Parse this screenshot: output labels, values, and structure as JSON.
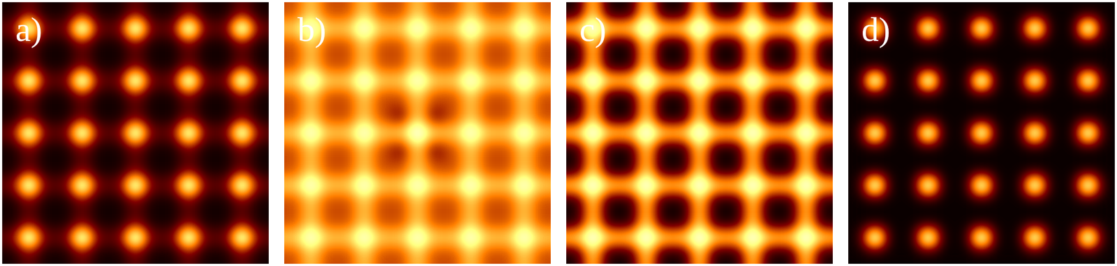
{
  "chart_data": [
    {
      "type": "heatmap",
      "title": "a)",
      "cells": [
        [
          4,
          20,
          4,
          4,
          20,
          4,
          4,
          20,
          4,
          4,
          20,
          4,
          4,
          20,
          4
        ],
        [
          20,
          100,
          20,
          20,
          100,
          20,
          20,
          100,
          20,
          20,
          100,
          20,
          20,
          100,
          20
        ],
        [
          4,
          20,
          4,
          4,
          20,
          4,
          4,
          20,
          4,
          4,
          20,
          4,
          4,
          20,
          4
        ],
        [
          4,
          20,
          4,
          4,
          20,
          4,
          4,
          20,
          4,
          4,
          20,
          4,
          4,
          20,
          4
        ],
        [
          20,
          100,
          20,
          20,
          100,
          20,
          20,
          100,
          20,
          20,
          100,
          20,
          20,
          100,
          20
        ],
        [
          4,
          20,
          4,
          4,
          20,
          4,
          4,
          20,
          4,
          4,
          20,
          4,
          4,
          20,
          4
        ],
        [
          4,
          20,
          4,
          4,
          20,
          4,
          4,
          20,
          4,
          4,
          20,
          4,
          4,
          20,
          4
        ],
        [
          20,
          100,
          20,
          20,
          100,
          20,
          20,
          100,
          20,
          20,
          100,
          20,
          20,
          100,
          20
        ],
        [
          4,
          20,
          4,
          4,
          20,
          4,
          4,
          20,
          4,
          4,
          20,
          4,
          4,
          20,
          4
        ],
        [
          4,
          20,
          4,
          4,
          20,
          4,
          4,
          20,
          4,
          4,
          20,
          4,
          4,
          20,
          4
        ],
        [
          20,
          100,
          20,
          20,
          100,
          20,
          20,
          100,
          20,
          20,
          100,
          20,
          20,
          100,
          20
        ],
        [
          4,
          20,
          4,
          4,
          20,
          4,
          4,
          20,
          4,
          4,
          20,
          4,
          4,
          20,
          4
        ],
        [
          4,
          20,
          4,
          4,
          20,
          4,
          4,
          20,
          4,
          4,
          20,
          4,
          4,
          20,
          4
        ],
        [
          20,
          100,
          20,
          20,
          100,
          20,
          20,
          100,
          20,
          20,
          100,
          20,
          20,
          100,
          20
        ],
        [
          4,
          20,
          4,
          4,
          20,
          4,
          4,
          20,
          4,
          4,
          20,
          4,
          4,
          20,
          4
        ]
      ]
    },
    {
      "type": "heatmap",
      "title": "b)",
      "cells": [
        [
          40,
          65,
          40,
          40,
          65,
          40,
          40,
          65,
          40,
          40,
          65,
          40,
          40,
          65,
          40
        ],
        [
          65,
          95,
          65,
          65,
          95,
          65,
          65,
          95,
          65,
          65,
          95,
          65,
          65,
          95,
          65
        ],
        [
          40,
          65,
          40,
          40,
          65,
          40,
          40,
          65,
          40,
          40,
          65,
          40,
          40,
          65,
          40
        ],
        [
          40,
          65,
          40,
          40,
          65,
          40,
          40,
          65,
          40,
          40,
          65,
          40,
          40,
          65,
          40
        ],
        [
          65,
          95,
          65,
          65,
          95,
          65,
          65,
          95,
          65,
          65,
          95,
          65,
          65,
          95,
          65
        ],
        [
          40,
          65,
          40,
          40,
          65,
          40,
          40,
          65,
          40,
          40,
          65,
          40,
          40,
          65,
          40
        ],
        [
          40,
          65,
          40,
          40,
          65,
          40,
          25,
          65,
          25,
          40,
          65,
          40,
          40,
          65,
          40
        ],
        [
          65,
          95,
          65,
          65,
          95,
          65,
          65,
          100,
          65,
          65,
          95,
          65,
          65,
          95,
          65
        ],
        [
          40,
          65,
          40,
          40,
          65,
          40,
          25,
          65,
          25,
          40,
          65,
          40,
          40,
          65,
          40
        ],
        [
          40,
          65,
          40,
          40,
          65,
          40,
          40,
          65,
          40,
          40,
          65,
          40,
          40,
          65,
          40
        ],
        [
          65,
          95,
          65,
          65,
          95,
          65,
          65,
          95,
          65,
          65,
          95,
          65,
          65,
          95,
          65
        ],
        [
          40,
          65,
          40,
          40,
          65,
          40,
          40,
          65,
          40,
          40,
          65,
          40,
          40,
          65,
          40
        ],
        [
          40,
          65,
          40,
          40,
          65,
          40,
          40,
          65,
          40,
          40,
          65,
          40,
          40,
          65,
          40
        ],
        [
          65,
          95,
          65,
          65,
          95,
          65,
          65,
          95,
          65,
          65,
          95,
          65,
          65,
          95,
          65
        ],
        [
          40,
          65,
          40,
          40,
          65,
          40,
          40,
          65,
          40,
          40,
          65,
          40,
          40,
          65,
          40
        ]
      ]
    },
    {
      "type": "heatmap",
      "title": "c)",
      "cells": [
        [
          5,
          65,
          5,
          5,
          65,
          5,
          5,
          65,
          5,
          5,
          65,
          5,
          5,
          65,
          5
        ],
        [
          65,
          100,
          65,
          65,
          100,
          65,
          65,
          100,
          65,
          65,
          100,
          65,
          65,
          100,
          65
        ],
        [
          5,
          65,
          5,
          5,
          65,
          5,
          5,
          65,
          5,
          5,
          65,
          5,
          5,
          65,
          5
        ],
        [
          5,
          65,
          5,
          5,
          65,
          5,
          5,
          65,
          5,
          5,
          65,
          5,
          5,
          65,
          5
        ],
        [
          65,
          100,
          65,
          65,
          100,
          65,
          65,
          100,
          65,
          65,
          100,
          65,
          65,
          100,
          65
        ],
        [
          5,
          65,
          5,
          5,
          65,
          5,
          5,
          65,
          5,
          5,
          65,
          5,
          5,
          65,
          5
        ],
        [
          5,
          65,
          5,
          5,
          65,
          5,
          5,
          65,
          5,
          5,
          65,
          5,
          5,
          65,
          5
        ],
        [
          65,
          100,
          65,
          65,
          100,
          65,
          65,
          100,
          65,
          65,
          100,
          65,
          65,
          100,
          65
        ],
        [
          5,
          65,
          5,
          5,
          65,
          5,
          5,
          65,
          5,
          5,
          65,
          5,
          5,
          65,
          5
        ],
        [
          5,
          65,
          5,
          5,
          65,
          5,
          5,
          65,
          5,
          5,
          65,
          5,
          5,
          65,
          5
        ],
        [
          65,
          100,
          65,
          65,
          100,
          65,
          65,
          100,
          65,
          65,
          100,
          65,
          65,
          100,
          65
        ],
        [
          5,
          65,
          5,
          5,
          65,
          5,
          5,
          65,
          5,
          5,
          65,
          5,
          5,
          65,
          5
        ],
        [
          5,
          65,
          5,
          5,
          65,
          5,
          5,
          65,
          5,
          5,
          65,
          5,
          5,
          65,
          5
        ],
        [
          65,
          100,
          65,
          65,
          100,
          65,
          65,
          100,
          65,
          65,
          100,
          65,
          65,
          100,
          65
        ],
        [
          5,
          65,
          5,
          5,
          65,
          5,
          5,
          65,
          5,
          5,
          65,
          5,
          5,
          65,
          5
        ]
      ]
    },
    {
      "type": "heatmap",
      "title": "d)",
      "cells": [
        [
          2,
          3,
          2,
          2,
          3,
          2,
          2,
          3,
          2,
          2,
          3,
          2,
          2,
          3,
          2
        ],
        [
          3,
          100,
          3,
          3,
          100,
          3,
          3,
          100,
          3,
          3,
          100,
          3,
          3,
          100,
          3
        ],
        [
          2,
          3,
          2,
          2,
          3,
          2,
          2,
          3,
          2,
          2,
          3,
          2,
          2,
          3,
          2
        ],
        [
          2,
          3,
          2,
          2,
          3,
          2,
          2,
          3,
          2,
          2,
          3,
          2,
          2,
          3,
          2
        ],
        [
          3,
          100,
          3,
          3,
          100,
          3,
          3,
          100,
          3,
          3,
          100,
          3,
          3,
          100,
          3
        ],
        [
          2,
          3,
          2,
          2,
          3,
          2,
          2,
          3,
          2,
          2,
          3,
          2,
          2,
          3,
          2
        ],
        [
          2,
          3,
          2,
          2,
          3,
          2,
          2,
          3,
          2,
          2,
          3,
          2,
          2,
          3,
          2
        ],
        [
          3,
          100,
          3,
          3,
          100,
          3,
          3,
          100,
          3,
          3,
          100,
          3,
          3,
          100,
          3
        ],
        [
          2,
          3,
          2,
          2,
          3,
          2,
          2,
          3,
          2,
          2,
          3,
          2,
          2,
          3,
          2
        ],
        [
          2,
          3,
          2,
          2,
          3,
          2,
          2,
          3,
          2,
          2,
          3,
          2,
          2,
          3,
          2
        ],
        [
          3,
          100,
          3,
          3,
          100,
          3,
          3,
          100,
          3,
          3,
          100,
          3,
          3,
          100,
          3
        ],
        [
          2,
          3,
          2,
          2,
          3,
          2,
          2,
          3,
          2,
          2,
          3,
          2,
          2,
          3,
          2
        ],
        [
          2,
          3,
          2,
          2,
          3,
          2,
          2,
          3,
          2,
          2,
          3,
          2,
          2,
          3,
          2
        ],
        [
          3,
          100,
          3,
          3,
          100,
          3,
          3,
          100,
          3,
          3,
          100,
          3,
          3,
          100,
          3
        ],
        [
          2,
          3,
          2,
          2,
          3,
          2,
          2,
          3,
          2,
          2,
          3,
          2,
          2,
          3,
          2
        ]
      ]
    }
  ]
}
